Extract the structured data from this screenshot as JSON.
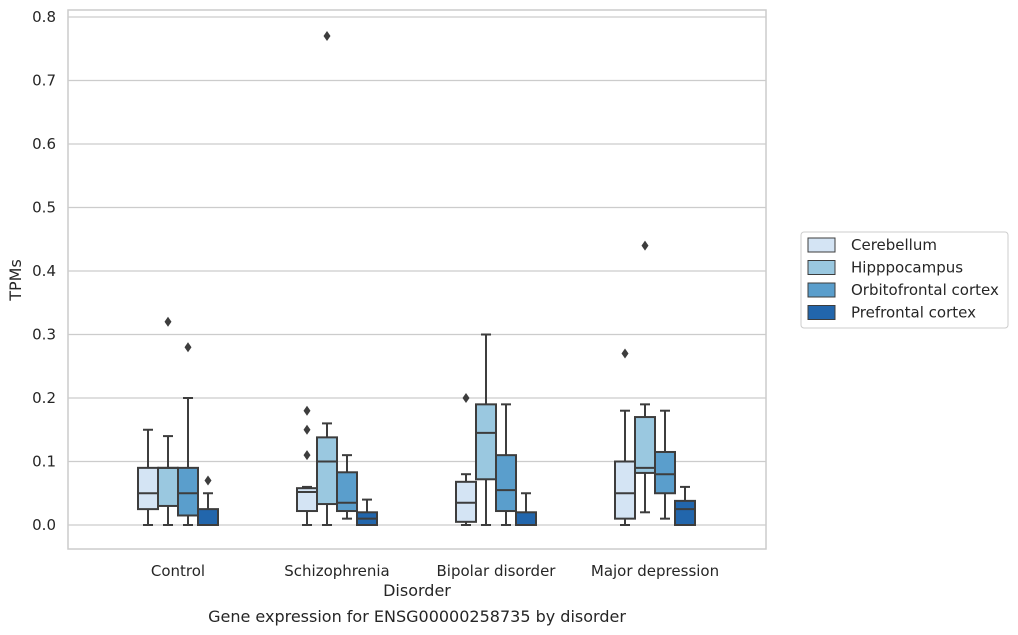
{
  "chart_data": {
    "type": "box",
    "title": "",
    "caption": "Gene expression for ENSG00000258735 by disorder",
    "xlabel": "Disorder",
    "ylabel": "TPMs",
    "ylim": [
      -0.037,
      0.81
    ],
    "yticks": [
      0.0,
      0.1,
      0.2,
      0.3,
      0.4,
      0.5,
      0.6,
      0.7,
      0.8
    ],
    "ytick_labels": [
      "0.0",
      "0.1",
      "0.2",
      "0.3",
      "0.4",
      "0.5",
      "0.6",
      "0.7",
      "0.8"
    ],
    "categories": [
      "Control",
      "Schizophrenia",
      "Bipolar disorder",
      "Major depression"
    ],
    "grid": "horizontal",
    "legend_position": "right",
    "series": [
      {
        "name": "Cerebellum",
        "color": "#d4e4f4",
        "boxes": [
          {
            "whislo": 0.0,
            "q1": 0.025,
            "med": 0.05,
            "q3": 0.09,
            "whishi": 0.15,
            "fliers": []
          },
          {
            "whislo": 0.0,
            "q1": 0.022,
            "med": 0.052,
            "q3": 0.058,
            "whishi": 0.06,
            "fliers": [
              0.18,
              0.15,
              0.11
            ]
          },
          {
            "whislo": 0.0,
            "q1": 0.005,
            "med": 0.035,
            "q3": 0.068,
            "whishi": 0.08,
            "fliers": [
              0.2
            ]
          },
          {
            "whislo": 0.0,
            "q1": 0.01,
            "med": 0.05,
            "q3": 0.1,
            "whishi": 0.18,
            "fliers": [
              0.27
            ]
          }
        ]
      },
      {
        "name": "Hipppocampus",
        "color": "#9ac8e0",
        "boxes": [
          {
            "whislo": 0.0,
            "q1": 0.03,
            "med": 0.09,
            "q3": 0.09,
            "whishi": 0.14,
            "fliers": [
              0.32
            ]
          },
          {
            "whislo": 0.0,
            "q1": 0.033,
            "med": 0.1,
            "q3": 0.138,
            "whishi": 0.16,
            "fliers": [
              0.77
            ]
          },
          {
            "whislo": 0.0,
            "q1": 0.072,
            "med": 0.145,
            "q3": 0.19,
            "whishi": 0.3,
            "fliers": []
          },
          {
            "whislo": 0.02,
            "q1": 0.082,
            "med": 0.09,
            "q3": 0.17,
            "whishi": 0.19,
            "fliers": [
              0.44
            ]
          }
        ]
      },
      {
        "name": "Orbitofrontal cortex",
        "color": "#5a9ecc",
        "boxes": [
          {
            "whislo": 0.0,
            "q1": 0.015,
            "med": 0.05,
            "q3": 0.09,
            "whishi": 0.2,
            "fliers": [
              0.28
            ]
          },
          {
            "whislo": 0.01,
            "q1": 0.022,
            "med": 0.035,
            "q3": 0.083,
            "whishi": 0.11,
            "fliers": []
          },
          {
            "whislo": 0.0,
            "q1": 0.022,
            "med": 0.055,
            "q3": 0.11,
            "whishi": 0.19,
            "fliers": []
          },
          {
            "whislo": 0.01,
            "q1": 0.05,
            "med": 0.08,
            "q3": 0.115,
            "whishi": 0.18,
            "fliers": []
          }
        ]
      },
      {
        "name": "Prefrontal cortex",
        "color": "#2266ac",
        "boxes": [
          {
            "whislo": 0.0,
            "q1": 0.0,
            "med": 0.0,
            "q3": 0.025,
            "whishi": 0.05,
            "fliers": [
              0.07
            ]
          },
          {
            "whislo": 0.0,
            "q1": 0.0,
            "med": 0.01,
            "q3": 0.02,
            "whishi": 0.04,
            "fliers": []
          },
          {
            "whislo": 0.0,
            "q1": 0.0,
            "med": 0.0,
            "q3": 0.02,
            "whishi": 0.05,
            "fliers": []
          },
          {
            "whislo": 0.0,
            "q1": 0.0,
            "med": 0.025,
            "q3": 0.038,
            "whishi": 0.06,
            "fliers": []
          }
        ]
      }
    ]
  }
}
